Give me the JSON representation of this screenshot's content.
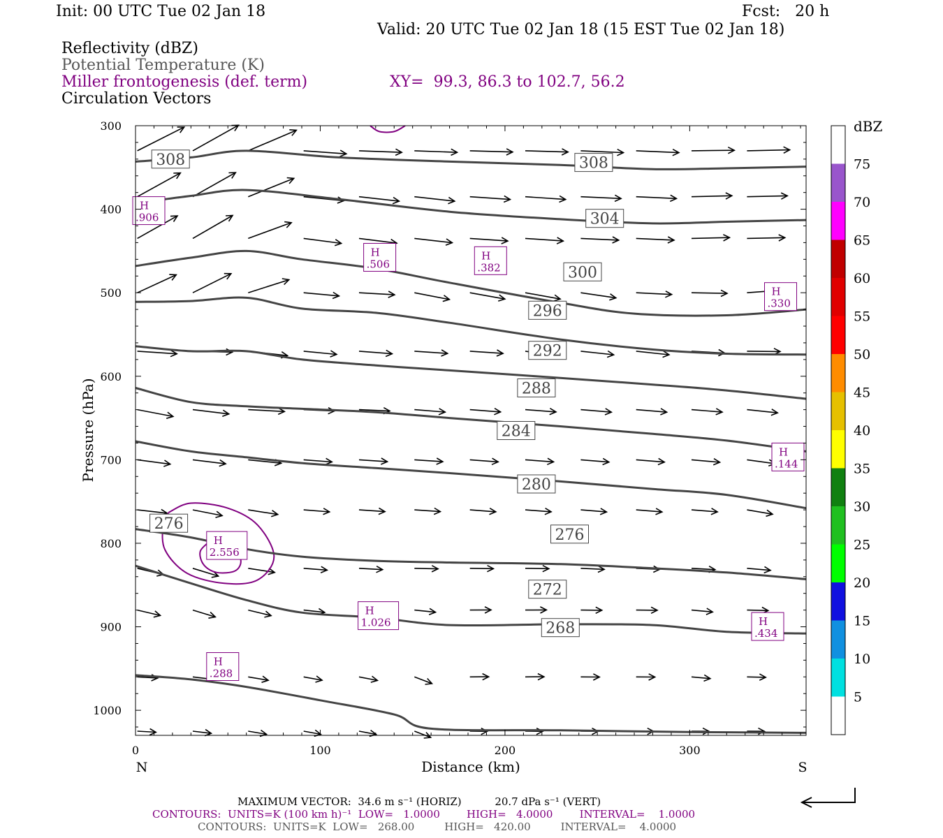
{
  "header": {
    "init": "Init: 00 UTC Tue 02 Jan 18",
    "fcst": "Fcst:   20 h",
    "valid": "Valid: 20 UTC Tue 02 Jan 18 (15 EST Tue 02 Jan 18)",
    "field1": "Reflectivity (dBZ)",
    "field2": "Potential Temperature (K)",
    "field3": "Miller frontogenesis (def. term)",
    "xy": "XY=  99.3, 86.3 to 102.7, 56.2",
    "field4": "Circulation Vectors"
  },
  "chart_data": {
    "type": "cross-section",
    "xlabel": "Distance (km)",
    "ylabel": "Pressure (hPa)",
    "xlim": [
      0,
      363
    ],
    "ylim": [
      1030,
      300
    ],
    "x_ticks": [
      "0",
      "100",
      "200",
      "300"
    ],
    "y_ticks": [
      "300",
      "400",
      "500",
      "600",
      "700",
      "800",
      "900",
      "1000"
    ],
    "left_end_label": "N",
    "right_end_label": "S",
    "colorbar": {
      "units": "dBZ",
      "labels": [
        "75",
        "70",
        "65",
        "60",
        "55",
        "50",
        "45",
        "40",
        "35",
        "30",
        "25",
        "20",
        "15",
        "10",
        "5"
      ],
      "colors": [
        "#ffffff",
        "#9955cc",
        "#ff00ff",
        "#c00000",
        "#e00000",
        "#ff0000",
        "#ff8c00",
        "#e6c000",
        "#ffff00",
        "#108010",
        "#20c020",
        "#00ff00",
        "#1010e0",
        "#1090e0",
        "#00e0e0",
        "#ffffff"
      ]
    },
    "theta_contours": [
      {
        "label": "308",
        "points": [
          [
            0,
            343
          ],
          [
            30,
            338
          ],
          [
            60,
            330
          ],
          [
            110,
            338
          ],
          [
            170,
            343
          ],
          [
            230,
            347
          ],
          [
            280,
            352
          ],
          [
            320,
            351
          ],
          [
            363,
            349
          ]
        ]
      },
      {
        "label": "304",
        "points": [
          [
            0,
            393
          ],
          [
            30,
            384
          ],
          [
            60,
            377
          ],
          [
            110,
            388
          ],
          [
            170,
            403
          ],
          [
            230,
            412
          ],
          [
            280,
            417
          ],
          [
            320,
            415
          ],
          [
            363,
            413
          ]
        ]
      },
      {
        "label": "300",
        "points": [
          [
            0,
            468
          ],
          [
            30,
            458
          ],
          [
            60,
            450
          ],
          [
            90,
            460
          ],
          [
            130,
            471
          ],
          [
            170,
            488
          ],
          [
            230,
            512
          ],
          [
            270,
            525
          ],
          [
            320,
            527
          ],
          [
            363,
            520
          ]
        ]
      },
      {
        "label": "296",
        "points": [
          [
            0,
            511
          ],
          [
            30,
            510
          ],
          [
            60,
            506
          ],
          [
            90,
            519
          ],
          [
            130,
            524
          ],
          [
            170,
            536
          ],
          [
            230,
            556
          ],
          [
            280,
            568
          ],
          [
            320,
            573
          ],
          [
            363,
            574
          ]
        ]
      },
      {
        "label": "292",
        "points": [
          [
            0,
            564
          ],
          [
            30,
            570
          ],
          [
            60,
            570
          ],
          [
            90,
            580
          ],
          [
            130,
            587
          ],
          [
            170,
            593
          ],
          [
            230,
            602
          ],
          [
            280,
            610
          ],
          [
            320,
            617
          ],
          [
            363,
            627
          ]
        ]
      },
      {
        "label": "288",
        "points": [
          [
            0,
            614
          ],
          [
            30,
            631
          ],
          [
            60,
            636
          ],
          [
            90,
            639
          ],
          [
            130,
            643
          ],
          [
            170,
            650
          ],
          [
            230,
            660
          ],
          [
            280,
            669
          ],
          [
            320,
            677
          ],
          [
            363,
            690
          ]
        ]
      },
      {
        "label": "284",
        "points": [
          [
            0,
            678
          ],
          [
            30,
            690
          ],
          [
            60,
            697
          ],
          [
            90,
            704
          ],
          [
            130,
            710
          ],
          [
            170,
            716
          ],
          [
            230,
            726
          ],
          [
            280,
            735
          ],
          [
            320,
            742
          ],
          [
            363,
            758
          ]
        ]
      },
      {
        "label": "280",
        "points": [
          [
            0,
            783
          ],
          [
            30,
            793
          ],
          [
            60,
            807
          ],
          [
            90,
            816
          ],
          [
            130,
            821
          ],
          [
            170,
            823
          ],
          [
            230,
            825
          ],
          [
            280,
            830
          ],
          [
            320,
            835
          ],
          [
            363,
            843
          ]
        ]
      },
      {
        "label": "276",
        "points": [
          [
            0,
            827
          ],
          [
            30,
            848
          ],
          [
            60,
            868
          ],
          [
            90,
            883
          ],
          [
            130,
            889
          ],
          [
            170,
            898
          ],
          [
            230,
            897
          ],
          [
            280,
            898
          ],
          [
            320,
            906
          ],
          [
            363,
            908
          ]
        ]
      },
      {
        "label": "272",
        "points": [
          [
            0,
            958
          ],
          [
            30,
            963
          ],
          [
            60,
            972
          ],
          [
            100,
            988
          ],
          [
            140,
            1005
          ],
          [
            160,
            1022
          ],
          [
            230,
            1024
          ],
          [
            300,
            1026
          ],
          [
            363,
            1027
          ]
        ]
      }
    ],
    "theta_labels": [
      {
        "text": "308",
        "x": 19,
        "p": 340
      },
      {
        "text": "308",
        "x": 248,
        "p": 344
      },
      {
        "text": "304",
        "x": 254,
        "p": 411
      },
      {
        "text": "300",
        "x": 242,
        "p": 475
      },
      {
        "text": "296",
        "x": 223,
        "p": 521
      },
      {
        "text": "292",
        "x": 223,
        "p": 569
      },
      {
        "text": "288",
        "x": 217,
        "p": 614
      },
      {
        "text": "284",
        "x": 206,
        "p": 665
      },
      {
        "text": "280",
        "x": 217,
        "p": 729
      },
      {
        "text": "276",
        "x": 18,
        "p": 776
      },
      {
        "text": "276",
        "x": 235,
        "p": 789
      },
      {
        "text": "272",
        "x": 223,
        "p": 855
      },
      {
        "text": "268",
        "x": 230,
        "p": 901
      }
    ],
    "frontogenesis_highs": [
      {
        "value": ".906",
        "x": 0,
        "p": 405
      },
      {
        "value": ".506",
        "x": 125,
        "p": 461
      },
      {
        "value": ".382",
        "x": 185,
        "p": 465
      },
      {
        "value": ".330",
        "x": 342,
        "p": 508
      },
      {
        "value": ".144",
        "x": 346,
        "p": 700
      },
      {
        "value": "2.556",
        "x": 40,
        "p": 806
      },
      {
        "value": "1.026",
        "x": 122,
        "p": 890
      },
      {
        "value": ".434",
        "x": 335,
        "p": 903
      },
      {
        "value": ".288",
        "x": 40,
        "p": 951
      }
    ],
    "frontogenesis_contours": [
      {
        "value": 1,
        "points": [
          [
            18,
            763
          ],
          [
            30,
            752
          ],
          [
            50,
            758
          ],
          [
            66,
            778
          ],
          [
            75,
            816
          ],
          [
            66,
            844
          ],
          [
            48,
            848
          ],
          [
            28,
            836
          ],
          [
            16,
            808
          ],
          [
            15,
            778
          ],
          [
            18,
            763
          ]
        ]
      },
      {
        "value": 2,
        "points": [
          [
            40,
            798
          ],
          [
            52,
            803
          ],
          [
            57,
            820
          ],
          [
            54,
            833
          ],
          [
            44,
            835
          ],
          [
            37,
            826
          ],
          [
            35,
            810
          ],
          [
            40,
            798
          ]
        ]
      },
      {
        "value": 1,
        "points": [
          [
            127,
            300
          ],
          [
            132,
            307
          ],
          [
            140,
            307
          ],
          [
            146,
            300
          ]
        ]
      }
    ]
  },
  "footer": {
    "max_vector": "MAXIMUM VECTOR:  34.6 m s⁻¹ (HORIZ)          20.7 dPa s⁻¹ (VERT)",
    "contours1": "CONTOURS:  UNITS=K (100 km h)⁻¹  LOW=   1.0000        HIGH=   4.0000        INTERVAL=    1.0000",
    "contours2": "CONTOURS:  UNITS=K  LOW=   268.00         HIGH=   420.00         INTERVAL=    4.0000"
  }
}
